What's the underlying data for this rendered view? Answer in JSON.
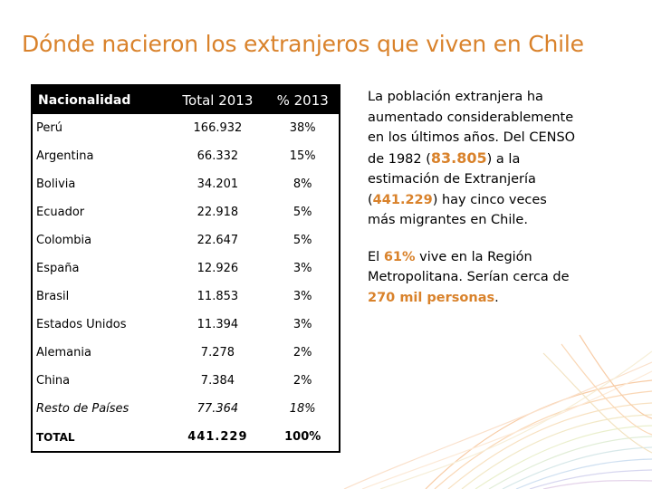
{
  "slide": {
    "title": "Dónde nacieron los extranjeros que viven en Chile"
  },
  "table": {
    "headers": [
      "Nacionalidad",
      "Total 2013",
      "% 2013"
    ],
    "rows": [
      {
        "country": "Perú",
        "total": "166.932",
        "pct": "38%"
      },
      {
        "country": "Argentina",
        "total": "66.332",
        "pct": "15%"
      },
      {
        "country": "Bolivia",
        "total": "34.201",
        "pct": "8%"
      },
      {
        "country": "Ecuador",
        "total": "22.918",
        "pct": "5%"
      },
      {
        "country": "Colombia",
        "total": "22.647",
        "pct": "5%"
      },
      {
        "country": "España",
        "total": "12.926",
        "pct": "3%"
      },
      {
        "country": "Brasil",
        "total": "11.853",
        "pct": "3%"
      },
      {
        "country": "Estados Unidos",
        "total": "11.394",
        "pct": "3%"
      },
      {
        "country": "Alemania",
        "total": "7.278",
        "pct": "2%"
      },
      {
        "country": "China",
        "total": "7.384",
        "pct": "2%"
      },
      {
        "country": "Resto de Países",
        "total": "77.364",
        "pct": "18%"
      },
      {
        "country": "TOTAL",
        "total": "441.229",
        "pct": "100%"
      }
    ]
  },
  "side": {
    "p1_a": "La población extranjera ha aumentado considerablemente en los últimos años. Del CENSO de 1982 (",
    "p1_census": "83.805",
    "p1_b": ") a la estimación de Extranjería (",
    "p1_estimate": "441.229",
    "p1_c": ") hay cinco veces más migrantes en Chile.",
    "p2_a": "El ",
    "p2_pct": "61%",
    "p2_b": " vive en la Región Metropolitana. Serían cerca de ",
    "p2_people": "270 mil personas",
    "p2_c": "."
  },
  "colors": {
    "accent": "#d9822b",
    "header_bg": "#000000"
  }
}
